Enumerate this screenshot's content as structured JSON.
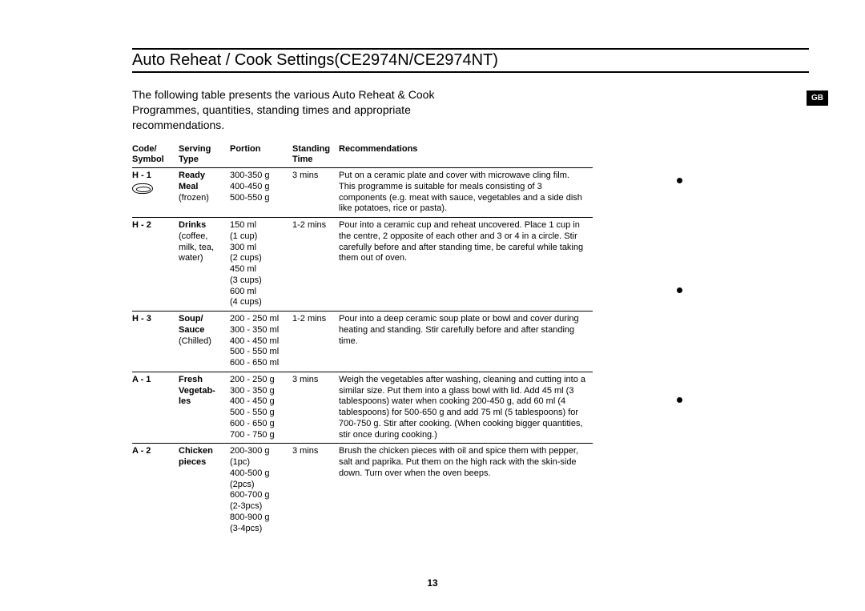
{
  "title": "Auto Reheat / Cook Settings(CE2974N/CE2974NT)",
  "intro": "The following table presents the various Auto Reheat & Cook Programmes,  quantities, standing times and appropriate recommendations.",
  "gb_label": "GB",
  "page_number": "13",
  "headers": {
    "code": "Code/\nSymbol",
    "serving": "Serving\nType",
    "portion": "Portion",
    "standing": "Standing\nTime",
    "recommend": "Recommendations"
  },
  "rows": [
    {
      "code": "H - 1",
      "has_symbol": true,
      "serving_bold": "Ready\nMeal",
      "serving_plain": "(frozen)",
      "portion": "300-350 g\n400-450 g\n500-550 g",
      "standing": "3 mins",
      "recommend": "Put on a ceramic plate and cover with microwave cling film.\nThis programme is suitable for meals consisting of 3 components (e.g. meat with sauce, vegetables and a side dish like potatoes, rice or pasta)."
    },
    {
      "code": "H - 2",
      "has_symbol": false,
      "serving_bold": "Drinks",
      "serving_plain": "(coffee, milk, tea, water)",
      "portion": "150 ml\n(1 cup)\n300 ml\n(2 cups)\n450 ml\n(3 cups)\n600 ml\n(4 cups)",
      "standing": "1-2 mins",
      "recommend": "Pour into a ceramic cup and reheat uncovered. Place 1 cup in the centre, 2 opposite of each other and 3 or 4 in a circle. Stir carefully before and after standing time, be careful while taking them out of oven."
    },
    {
      "code": "H - 3",
      "has_symbol": false,
      "serving_bold": "Soup/\nSauce",
      "serving_plain": "(Chilled)",
      "portion": "200 - 250 ml\n300 - 350 ml\n400 - 450 ml\n500 - 550 ml\n600 - 650 ml",
      "standing": "1-2 mins",
      "recommend": "Pour into a deep ceramic soup plate or bowl and cover during heating and standing. Stir carefully before and after standing time."
    },
    {
      "code": "A - 1",
      "has_symbol": false,
      "serving_bold": "Fresh\nVegetab-\nles",
      "serving_plain": "",
      "portion": "200 - 250 g\n300 - 350 g\n400 - 450 g\n500 - 550 g\n600 - 650 g\n700 - 750 g",
      "standing": "3 mins",
      "recommend": "Weigh the vegetables after washing, cleaning and cutting into a similar size. Put them into a glass bowl with lid. Add 45 ml (3 tablespoons) water when cooking 200-450 g, add 60 ml (4 tablespoons) for 500-650 g and add 75 ml (5 tablespoons) for 700-750 g. Stir after cooking. (When cooking bigger quantities, stir once during cooking.)"
    },
    {
      "code": "A - 2",
      "has_symbol": false,
      "serving_bold": "Chicken\npieces",
      "serving_plain": "",
      "portion": "200-300 g\n(1pc)\n400-500 g\n(2pcs)\n600-700 g\n(2-3pcs)\n800-900 g\n(3-4pcs)",
      "standing": "3 mins",
      "recommend": "Brush the chicken pieces with oil and spice them with pepper, salt and paprika. Put them on the high rack with the skin-side down. Turn over when the oven beeps."
    }
  ],
  "colors": {
    "background": "#ffffff",
    "text": "#000000",
    "rule": "#000000"
  },
  "typography": {
    "title_fontsize": 20,
    "intro_fontsize": 14,
    "table_fontsize": 11,
    "page_num_fontsize": 12
  }
}
